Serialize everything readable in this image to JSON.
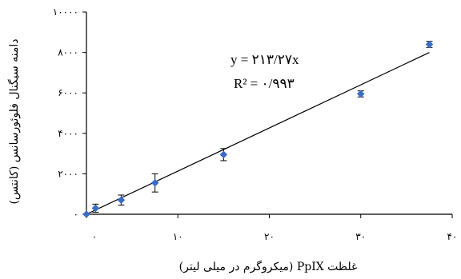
{
  "chart_data": {
    "type": "scatter",
    "xlabel": "غلظت PpIX (میکروگرم در میلی لیتر)",
    "ylabel": "دامنه سیگنال فلوئورسانس (کانتس)",
    "xlim": [
      0,
      40
    ],
    "ylim": [
      0,
      10000
    ],
    "x_ticks": [
      0,
      10,
      20,
      30,
      40
    ],
    "x_tick_labels": [
      "۰",
      "۱۰",
      "۲۰",
      "۳۰",
      "۴۰"
    ],
    "y_ticks": [
      0,
      2000,
      4000,
      6000,
      8000,
      10000
    ],
    "y_tick_labels": [
      "۰",
      "۲۰۰۰",
      "۴۰۰۰",
      "۶۰۰۰",
      "۸۰۰۰",
      "۱۰۰۰۰"
    ],
    "grid": false,
    "points": [
      {
        "x": 0,
        "y": 0,
        "err": 0
      },
      {
        "x": 1,
        "y": 300,
        "err": 200
      },
      {
        "x": 3.8,
        "y": 700,
        "err": 250
      },
      {
        "x": 7.5,
        "y": 1550,
        "err": 450
      },
      {
        "x": 15,
        "y": 2950,
        "err": 300
      },
      {
        "x": 30,
        "y": 5950,
        "err": 150
      },
      {
        "x": 37.5,
        "y": 8400,
        "err": 150
      }
    ],
    "fit_line": {
      "slope": 213.27,
      "intercept": 0,
      "x_range": [
        0,
        37.5
      ]
    },
    "equation": "y = ۲۱۳/۲۷x",
    "r_squared": "R² = ۰/۹۹۳",
    "marker_color": "#3b6cc4"
  }
}
